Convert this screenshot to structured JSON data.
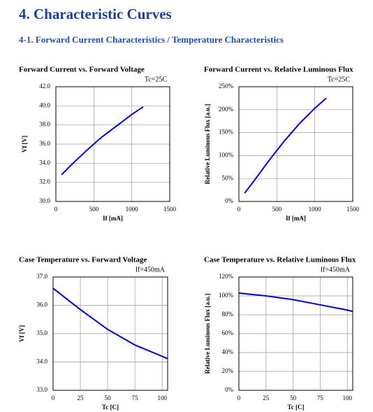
{
  "header": {
    "title": "4. Characteristic Curves",
    "subtitle": "4-1. Forward Current Characteristics / Temperature Characteristics"
  },
  "chart_data": [
    {
      "type": "line",
      "title": "Forward Current vs. Forward Voltage",
      "annotation": "Tc=25C",
      "x_label": "If [mA]",
      "y_label": "Vf [V]",
      "x": [
        75,
        200,
        400,
        600,
        800,
        1000,
        1150
      ],
      "values": [
        32.8,
        33.8,
        35.3,
        36.7,
        37.9,
        39.1,
        39.9
      ],
      "color": "#0000c0",
      "xlim": [
        0,
        1500
      ],
      "xticks": [
        0,
        500,
        1000,
        1500
      ],
      "ylim": [
        30,
        42
      ],
      "yticks": [
        {
          "value": 30,
          "label": "30.0"
        },
        {
          "value": 32,
          "label": "32.0"
        },
        {
          "value": 34,
          "label": "34.0"
        },
        {
          "value": 36,
          "label": "36.0"
        },
        {
          "value": 38,
          "label": "38.0"
        },
        {
          "value": 40,
          "label": "40.0"
        },
        {
          "value": 42,
          "label": "42.0"
        }
      ],
      "grid": true
    },
    {
      "type": "line",
      "title": "Forward Current vs. Relative Luminous Flux",
      "annotation": "Tc=25C",
      "x_label": "If [mA]",
      "y_label": "Relative Luminous Flux [a.u.]",
      "x": [
        75,
        200,
        400,
        600,
        800,
        1000,
        1150
      ],
      "values": [
        18,
        45,
        90,
        132,
        170,
        203,
        225
      ],
      "color": "#0000c0",
      "xlim": [
        0,
        1500
      ],
      "xticks": [
        0,
        500,
        1000,
        1500
      ],
      "ylim": [
        0,
        250
      ],
      "yticks": [
        {
          "value": 0,
          "label": "0%"
        },
        {
          "value": 50,
          "label": "50%"
        },
        {
          "value": 100,
          "label": "100%"
        },
        {
          "value": 150,
          "label": "150%"
        },
        {
          "value": 200,
          "label": "200%"
        },
        {
          "value": 250,
          "label": "250%"
        }
      ],
      "grid": true
    },
    {
      "type": "line",
      "title": "Case Temperature vs. Forward Voltage",
      "annotation": "If=450mA",
      "x_label": "Tc [C]",
      "y_label": "Vf [V]",
      "x": [
        0,
        25,
        50,
        75,
        100,
        105
      ],
      "values": [
        36.6,
        35.85,
        35.15,
        34.6,
        34.2,
        34.12
      ],
      "color": "#0000c0",
      "xlim": [
        0,
        105
      ],
      "xticks": [
        0,
        25,
        50,
        75,
        100
      ],
      "ylim": [
        33,
        37
      ],
      "yticks": [
        {
          "value": 33,
          "label": "33.0"
        },
        {
          "value": 34,
          "label": "34.0"
        },
        {
          "value": 35,
          "label": "35.0"
        },
        {
          "value": 36,
          "label": "36.0"
        },
        {
          "value": 37,
          "label": "37.0"
        }
      ],
      "grid": true
    },
    {
      "type": "line",
      "title": "Case Temperature vs. Relative Luminous Flux",
      "annotation": "If=450mA",
      "x_label": "Tc [C]",
      "y_label": "Relative Luminous Flux [a.u.]",
      "x": [
        0,
        25,
        50,
        75,
        100,
        105
      ],
      "values": [
        103,
        100,
        96,
        90.5,
        85,
        83.5
      ],
      "color": "#0000c0",
      "xlim": [
        0,
        105
      ],
      "xticks": [
        0,
        25,
        50,
        75,
        100
      ],
      "ylim": [
        0,
        120
      ],
      "yticks": [
        {
          "value": 0,
          "label": "0%"
        },
        {
          "value": 20,
          "label": "20%"
        },
        {
          "value": 40,
          "label": "40%"
        },
        {
          "value": 60,
          "label": "60%"
        },
        {
          "value": 80,
          "label": "80%"
        },
        {
          "value": 100,
          "label": "100%"
        },
        {
          "value": 120,
          "label": "120%"
        }
      ],
      "grid": true
    }
  ]
}
